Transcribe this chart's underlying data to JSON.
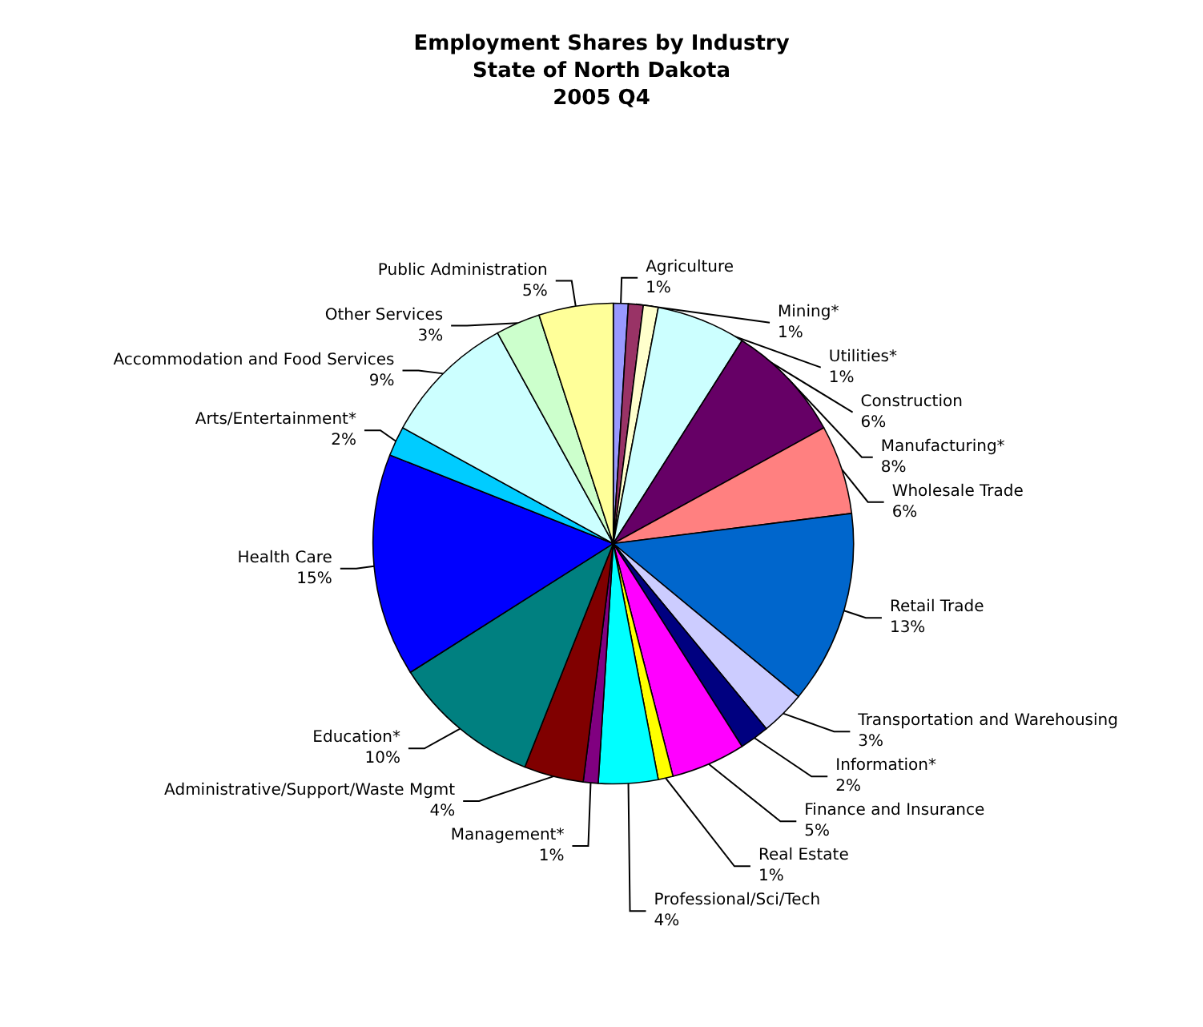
{
  "chart_data": {
    "type": "pie",
    "title": "Employment Shares by Industry\nState of North Dakota\n2005 Q4",
    "categories": [
      "Agriculture",
      "Mining*",
      "Utilities*",
      "Construction",
      "Manufacturing*",
      "Wholesale Trade",
      "Retail Trade",
      "Transportation and Warehousing",
      "Information*",
      "Finance and Insurance",
      "Real Estate",
      "Professional/Sci/Tech",
      "Management*",
      "Administrative/Support/Waste Mgmt",
      "Education*",
      "Health Care",
      "Arts/Entertainment*",
      "Accommodation and Food Services",
      "Other Services",
      "Public Administration"
    ],
    "values": [
      1,
      1,
      1,
      6,
      8,
      6,
      13,
      3,
      2,
      5,
      1,
      4,
      1,
      4,
      10,
      15,
      2,
      9,
      3,
      5
    ],
    "colors": [
      "#9999ff",
      "#993366",
      "#ffffcc",
      "#ccffff",
      "#660066",
      "#ff8080",
      "#0066cc",
      "#ccccff",
      "#000080",
      "#ff00ff",
      "#ffff00",
      "#00ffff",
      "#800080",
      "#800000",
      "#008080",
      "#0000ff",
      "#00ccff",
      "#ccffff",
      "#ccffcc",
      "#ffff99"
    ],
    "value_labels": [
      "1%",
      "1%",
      "1%",
      "6%",
      "8%",
      "6%",
      "13%",
      "3%",
      "2%",
      "5%",
      "1%",
      "4%",
      "1%",
      "4%",
      "10%",
      "15%",
      "2%",
      "9%",
      "3%",
      "5%"
    ],
    "legend": false
  }
}
